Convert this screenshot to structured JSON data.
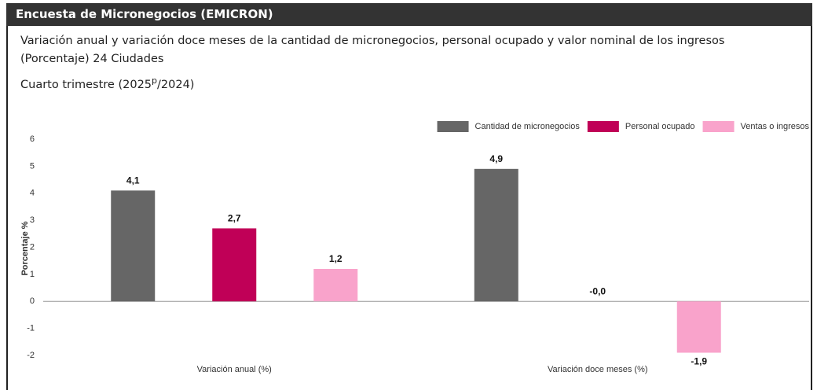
{
  "header": {
    "title": "Encuesta de Micronegocios (EMICRON)"
  },
  "chart_data": {
    "type": "bar",
    "subtitle": [
      "Variación anual y variación doce meses de la cantidad de micronegocios, personal ocupado y valor nominal de los ingresos",
      "(Porcentaje) 24 Ciudades"
    ],
    "period": [
      "Cuarto trimestre (2025",
      "p",
      "/2024)"
    ],
    "y_label": "Porcentaje %",
    "categories": [
      "Variación anual (%)",
      "Variación doce meses (%)"
    ],
    "series": [
      {
        "name": "Cantidad de micronegocios",
        "color": "#666666",
        "values": [
          4.1,
          4.9
        ],
        "value_labels": [
          "4,1",
          "4,9"
        ]
      },
      {
        "name": "Personal ocupado",
        "color": "#c00057",
        "values": [
          2.7,
          -0.0
        ],
        "value_labels": [
          "2,7",
          "-0,0"
        ]
      },
      {
        "name": "Ventas o ingresos",
        "color": "#f9a3cb",
        "values": [
          1.2,
          -1.9
        ],
        "value_labels": [
          "1,2",
          "-1,9"
        ]
      }
    ],
    "ylim": [
      -2,
      6
    ],
    "yticks": [
      -2,
      -1,
      0,
      1,
      2,
      3,
      4,
      5,
      6
    ],
    "grid": false,
    "legend": "top-right"
  }
}
